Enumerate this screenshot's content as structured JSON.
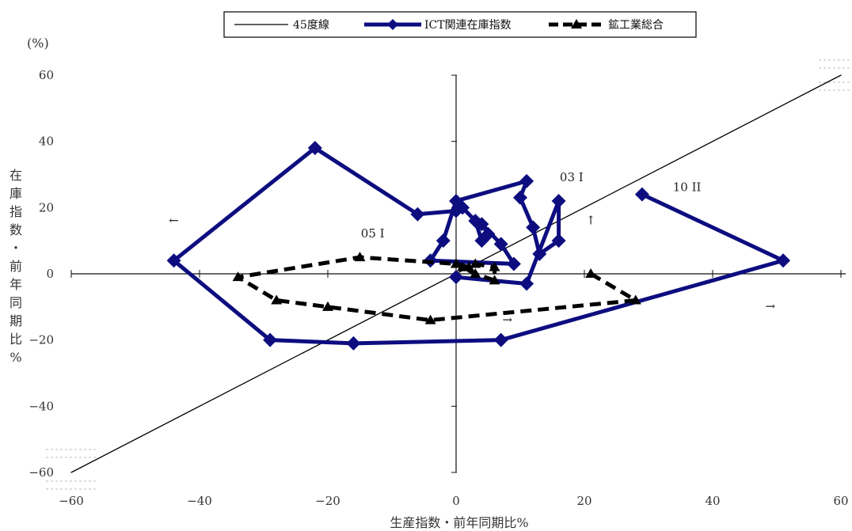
{
  "chart_data": {
    "type": "line",
    "title": "",
    "xlabel": "生産指数・前年同期比%",
    "ylabel_chars": [
      "在",
      "庫",
      "指",
      "数",
      "・",
      "前",
      "年",
      "同",
      "期",
      "比",
      "%"
    ],
    "y_unit": "(%)",
    "xlim": [
      -60,
      60
    ],
    "ylim": [
      -60,
      60
    ],
    "x_ticks": [
      -60,
      -40,
      -20,
      0,
      20,
      40,
      60
    ],
    "y_ticks": [
      -60,
      -40,
      -20,
      0,
      20,
      40,
      60
    ],
    "tick_label_text": {
      "x": [
        "−60",
        "−40",
        "−20",
        "0",
        "20",
        "40",
        "60"
      ],
      "y": [
        "−60",
        "−40",
        "−20",
        "0",
        "20",
        "40",
        "60"
      ]
    },
    "legend_position": "top",
    "series": [
      {
        "name": "45度線",
        "color": "#000000",
        "style": "solid-thin",
        "points": [
          [
            -60,
            -60
          ],
          [
            60,
            60
          ]
        ]
      },
      {
        "name": "ICT関連在庫指数",
        "color": "#0d0d80",
        "style": "solid-thick-diamond",
        "points": [
          [
            29,
            24
          ],
          [
            51,
            4
          ],
          [
            7,
            -20
          ],
          [
            -16,
            -21
          ],
          [
            -29,
            -20
          ],
          [
            -44,
            4
          ],
          [
            -22,
            38
          ],
          [
            -6,
            18
          ],
          [
            0,
            19
          ],
          [
            1,
            20
          ],
          [
            3,
            16
          ],
          [
            4,
            10
          ],
          [
            5,
            12
          ],
          [
            4,
            15
          ],
          [
            7,
            9
          ],
          [
            9,
            3
          ],
          [
            -4,
            4
          ],
          [
            -2,
            10
          ],
          [
            0,
            22
          ],
          [
            11,
            28
          ],
          [
            10,
            23
          ],
          [
            12,
            14
          ],
          [
            13,
            6
          ],
          [
            16,
            10
          ],
          [
            16,
            22
          ],
          [
            11,
            -3
          ],
          [
            0,
            -1
          ]
        ]
      },
      {
        "name": "鉱工業総合",
        "color": "#000000",
        "style": "dashed-thick-triangle",
        "points": [
          [
            21,
            0
          ],
          [
            28,
            -8
          ],
          [
            -4,
            -14
          ],
          [
            -20,
            -10
          ],
          [
            -28,
            -8
          ],
          [
            -34,
            -1
          ],
          [
            -15,
            5
          ],
          [
            0,
            3
          ],
          [
            2,
            2
          ],
          [
            3,
            3
          ],
          [
            6,
            2
          ],
          [
            6,
            -2
          ],
          [
            3,
            0
          ],
          [
            1,
            2
          ],
          [
            0,
            3
          ]
        ]
      }
    ],
    "annotations": [
      {
        "text": "03 I",
        "x": 18,
        "y": 28
      },
      {
        "text": "10 II",
        "x": 36,
        "y": 25
      },
      {
        "text": "05 I",
        "x": -13,
        "y": 11
      },
      {
        "text": "←",
        "x": -44,
        "y": 15
      },
      {
        "text": "↑",
        "x": 21,
        "y": 15
      },
      {
        "text": "→",
        "x": 8,
        "y": -15
      },
      {
        "text": "→",
        "x": 49,
        "y": -11
      }
    ]
  }
}
